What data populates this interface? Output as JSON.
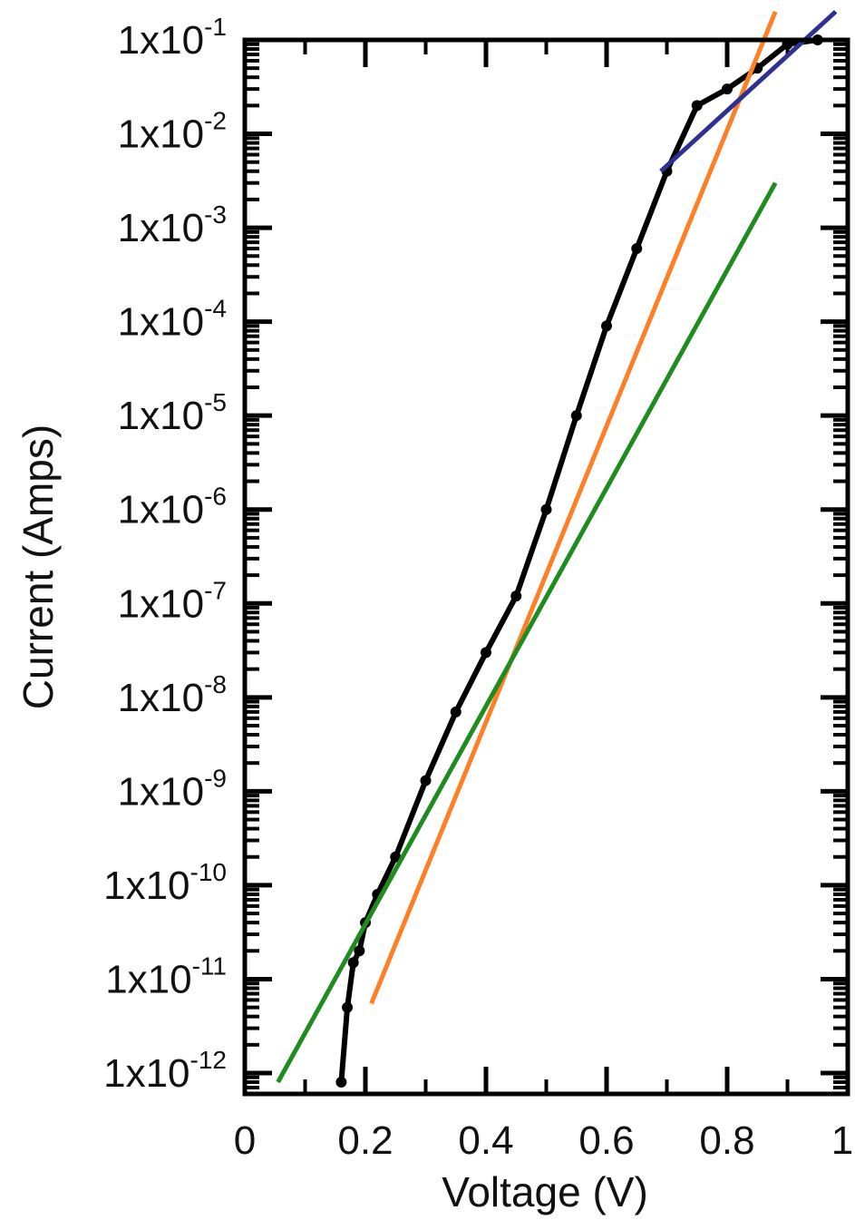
{
  "chart_data": {
    "type": "line",
    "title": "",
    "xlabel": "Voltage (V)",
    "ylabel": "Current (Amps)",
    "xlim": [
      0,
      1
    ],
    "ylim": [
      1e-12,
      0.1
    ],
    "y_scale": "log",
    "grid": false,
    "legend": "none",
    "x_ticks": [
      0,
      0.2,
      0.4,
      0.6,
      0.8,
      1
    ],
    "x_tick_labels": [
      "0",
      "0.2",
      "0.4",
      "0.6",
      "0.8",
      "1"
    ],
    "y_tick_labels": [
      {
        "base": "1x10",
        "exp": "-1"
      },
      {
        "base": "1x10",
        "exp": "-2"
      },
      {
        "base": "1x10",
        "exp": "-3"
      },
      {
        "base": "1x10",
        "exp": "-4"
      },
      {
        "base": "1x10",
        "exp": "-5"
      },
      {
        "base": "1x10",
        "exp": "-6"
      },
      {
        "base": "1x10",
        "exp": "-7"
      },
      {
        "base": "1x10",
        "exp": "-8"
      },
      {
        "base": "1x10",
        "exp": "-9"
      },
      {
        "base": "1x10",
        "exp": "-10"
      },
      {
        "base": "1x10",
        "exp": "-11"
      },
      {
        "base": "1x10",
        "exp": "-12"
      }
    ],
    "series": [
      {
        "color": "#000000",
        "style": "line-with-markers",
        "x": [
          0.16,
          0.17,
          0.18,
          0.19,
          0.2,
          0.22,
          0.25,
          0.3,
          0.35,
          0.4,
          0.45,
          0.5,
          0.55,
          0.6,
          0.65,
          0.7,
          0.75,
          0.8,
          0.85,
          0.9,
          0.95
        ],
        "y": [
          8e-13,
          5e-12,
          1.5e-11,
          2e-11,
          4e-11,
          8e-11,
          2e-10,
          1.3e-09,
          7e-09,
          3e-08,
          1.2e-07,
          1e-06,
          1e-05,
          9e-05,
          0.0006,
          0.004,
          0.02,
          0.03,
          0.05,
          0.09,
          0.1
        ]
      },
      {
        "color": "#ff7f27",
        "style": "line",
        "x": [
          0.21,
          0.88
        ],
        "y": [
          5.5e-12,
          0.2
        ]
      },
      {
        "color": "#1e8c1e",
        "style": "line",
        "x": [
          0.055,
          0.88
        ],
        "y": [
          8e-13,
          0.003
        ]
      },
      {
        "color": "#2e3192",
        "style": "line",
        "x": [
          0.69,
          0.98
        ],
        "y": [
          0.004,
          0.2
        ]
      }
    ]
  }
}
